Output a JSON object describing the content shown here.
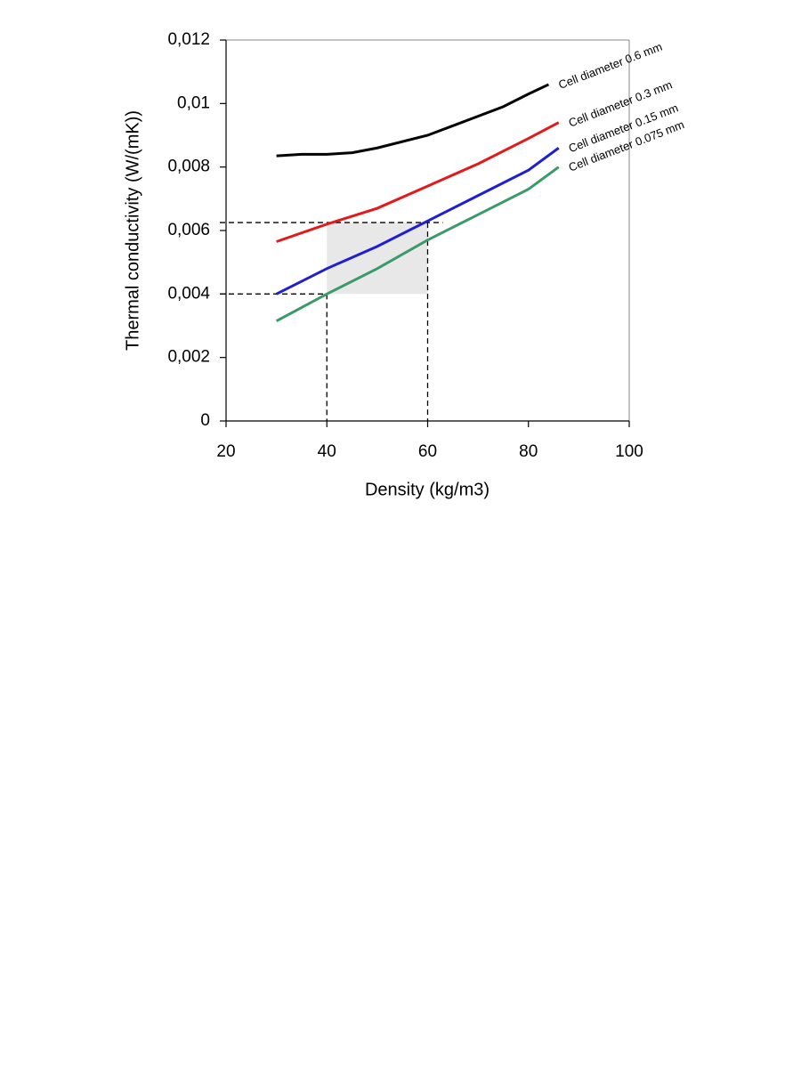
{
  "chart_data": {
    "type": "line",
    "xlabel": "Density (kg/m3)",
    "ylabel": "Thermal conductivity (W/(mK))",
    "xlim": [
      20,
      100
    ],
    "xticks": [
      20,
      40,
      60,
      80,
      100
    ],
    "ylim": [
      0,
      0.012
    ],
    "yticks": [
      0,
      {
        "value": 0.002,
        "label": "0,002"
      },
      {
        "value": 0.004,
        "label": "0,004"
      },
      {
        "value": 0.006,
        "label": "0,006"
      },
      {
        "value": 0.008,
        "label": "0,008"
      },
      {
        "value": 0.01,
        "label": "0,01"
      },
      {
        "value": 0.012,
        "label": "0,012"
      }
    ],
    "series": [
      {
        "name": "Cell diameter 0.6 mm",
        "color": "#000000",
        "x": [
          30,
          35,
          40,
          45,
          50,
          60,
          70,
          75,
          80,
          84
        ],
        "values": [
          0.00835,
          0.0084,
          0.0084,
          0.00845,
          0.0086,
          0.009,
          0.0096,
          0.0099,
          0.0103,
          0.0106
        ]
      },
      {
        "name": "Cell diameter 0.3 mm",
        "color": "#e31a1c",
        "x": [
          30,
          40,
          50,
          60,
          70,
          80,
          86
        ],
        "values": [
          0.00565,
          0.0062,
          0.0067,
          0.0074,
          0.0081,
          0.0089,
          0.0094
        ]
      },
      {
        "name": "Cell diameter 0.15 mm",
        "color": "#1f1fd0",
        "x": [
          30,
          40,
          50,
          60,
          70,
          80,
          86
        ],
        "values": [
          0.004,
          0.0048,
          0.0055,
          0.0063,
          0.0071,
          0.0079,
          0.0086
        ]
      },
      {
        "name": "Cell diameter 0.075 mm",
        "color": "#3a9a6a",
        "x": [
          30,
          40,
          50,
          60,
          70,
          80,
          86
        ],
        "values": [
          0.00315,
          0.004,
          0.0048,
          0.0057,
          0.0065,
          0.0073,
          0.008
        ]
      }
    ],
    "highlight": {
      "xlim": [
        40,
        60
      ],
      "ylim": [
        0.004,
        0.00625
      ]
    }
  }
}
